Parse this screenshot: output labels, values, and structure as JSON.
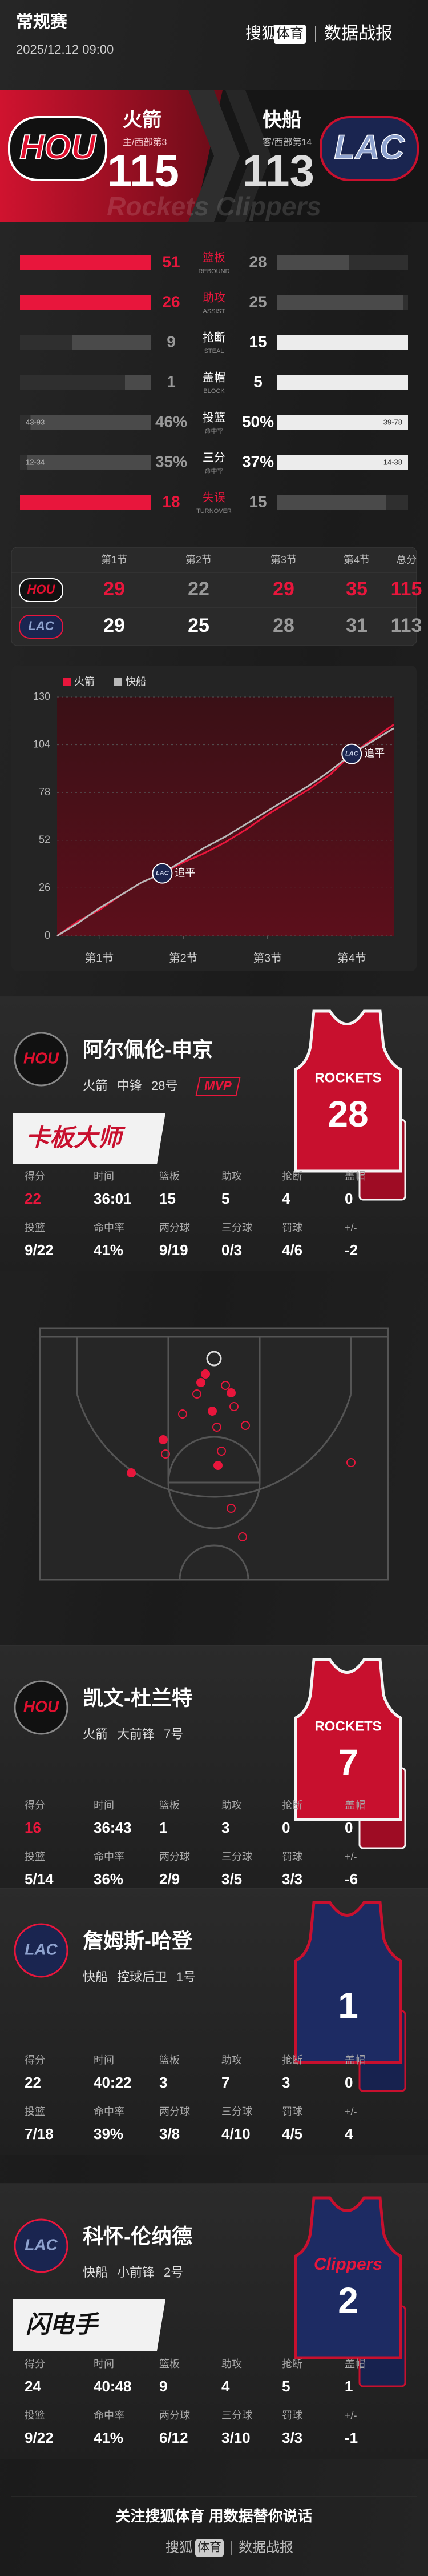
{
  "header": {
    "title": "常规赛",
    "date": "2025/12.12 09:00",
    "brand": "搜狐",
    "brand_tag": "体育",
    "report": "数据战报"
  },
  "teams": {
    "home": {
      "logo": "HOU",
      "name": "火箭",
      "rank": "主/西部第3",
      "score": 115
    },
    "away": {
      "logo": "LAC",
      "name": "快船",
      "rank": "客/西部第14",
      "score": 113
    },
    "watermark": "Rockets Clippers"
  },
  "comparison": [
    {
      "label": "篮板",
      "sub": "REBOUND",
      "home": 51,
      "away": 28
    },
    {
      "label": "助攻",
      "sub": "ASSIST",
      "home": 26,
      "away": 25
    },
    {
      "label": "抢断",
      "sub": "STEAL",
      "home": 9,
      "away": 15
    },
    {
      "label": "盖帽",
      "sub": "BLOCK",
      "home": 1,
      "away": 5
    },
    {
      "label": "投篮",
      "sub": "命中率",
      "home": 46,
      "away": 50,
      "home_label": "46%",
      "away_label": "50%",
      "home_detail": "43-93",
      "away_detail": "39-78"
    },
    {
      "label": "三分",
      "sub": "命中率",
      "home": 35,
      "away": 37,
      "home_label": "35%",
      "away_label": "37%",
      "home_detail": "12-34",
      "away_detail": "14-38"
    },
    {
      "label": "失误",
      "sub": "TURNOVER",
      "home": 18,
      "away": 15
    }
  ],
  "quarters": {
    "headers": [
      "第1节",
      "第2节",
      "第3节",
      "第4节",
      "总分"
    ],
    "rows": [
      {
        "logo": "HOU",
        "scores": [
          29,
          22,
          29,
          35,
          115
        ]
      },
      {
        "logo": "LAC",
        "scores": [
          29,
          25,
          28,
          31,
          113
        ]
      }
    ]
  },
  "score_chart": {
    "type": "line",
    "x": [
      0,
      3,
      6,
      9,
      12,
      15,
      18,
      21,
      24,
      27,
      30,
      33,
      36,
      39,
      42,
      45,
      48
    ],
    "series": [
      {
        "name": "火箭",
        "color": "#e8163c",
        "values": [
          0,
          8,
          14,
          22,
          29,
          34,
          40,
          45,
          51,
          58,
          66,
          73,
          80,
          88,
          99,
          107,
          115
        ]
      },
      {
        "name": "快船",
        "color": "#b8b8b8",
        "values": [
          0,
          7,
          15,
          22,
          29,
          34,
          41,
          48,
          54,
          61,
          68,
          75,
          82,
          90,
          99,
          106,
          113
        ]
      }
    ],
    "xlim": [
      0,
      48
    ],
    "xticks": [
      {
        "value": 6,
        "label": "第1节"
      },
      {
        "value": 18,
        "label": "第2节"
      },
      {
        "value": 30,
        "label": "第3节"
      },
      {
        "value": 42,
        "label": "第4节"
      }
    ],
    "ylim": [
      0,
      130
    ],
    "yticks": [
      0,
      26,
      52,
      78,
      104,
      130
    ],
    "annotations": [
      {
        "text": "追平",
        "logo": "LAC",
        "x": 15,
        "y": 34
      },
      {
        "text": "追平",
        "logo": "LAC",
        "x": 42,
        "y": 99
      }
    ]
  },
  "players": [
    {
      "logo": "HOU",
      "name": "阿尔佩伦-申京",
      "team": "火箭",
      "position": "中锋",
      "number": "28号",
      "badge": "MVP",
      "tag": "卡板大师",
      "jersey": {
        "text": "ROCKETS",
        "number": "28"
      },
      "stats": [
        [
          {
            "label": "得分",
            "value": "22"
          },
          {
            "label": "时间",
            "value": "36:01"
          },
          {
            "label": "篮板",
            "value": "15"
          },
          {
            "label": "助攻",
            "value": "5"
          },
          {
            "label": "抢断",
            "value": "4"
          },
          {
            "label": "盖帽",
            "value": "0"
          }
        ],
        [
          {
            "label": "投篮",
            "value": "9/22"
          },
          {
            "label": "命中率",
            "value": "41%"
          },
          {
            "label": "两分球",
            "value": "9/19"
          },
          {
            "label": "三分球",
            "value": "0/3"
          },
          {
            "label": "罚球",
            "value": "4/6"
          },
          {
            "label": "+/-",
            "value": "-2"
          }
        ]
      ]
    },
    {
      "logo": "HOU",
      "name": "凯文-杜兰特",
      "team": "火箭",
      "position": "大前锋",
      "number": "7号",
      "jersey": {
        "text": "ROCKETS",
        "number": "7"
      },
      "stats": [
        [
          {
            "label": "得分",
            "value": "16"
          },
          {
            "label": "时间",
            "value": "36:43"
          },
          {
            "label": "篮板",
            "value": "1"
          },
          {
            "label": "助攻",
            "value": "3"
          },
          {
            "label": "抢断",
            "value": "0"
          },
          {
            "label": "盖帽",
            "value": "0"
          }
        ],
        [
          {
            "label": "投篮",
            "value": "5/14"
          },
          {
            "label": "命中率",
            "value": "36%"
          },
          {
            "label": "两分球",
            "value": "2/9"
          },
          {
            "label": "三分球",
            "value": "3/5"
          },
          {
            "label": "罚球",
            "value": "3/3"
          },
          {
            "label": "+/-",
            "value": "-6"
          }
        ]
      ]
    },
    {
      "logo": "LAC",
      "name": "詹姆斯-哈登",
      "team": "快船",
      "position": "控球后卫",
      "number": "1号",
      "jersey": {
        "number": "1"
      },
      "stats": [
        [
          {
            "label": "得分",
            "value": "22"
          },
          {
            "label": "时间",
            "value": "40:22"
          },
          {
            "label": "篮板",
            "value": "3"
          },
          {
            "label": "助攻",
            "value": "7"
          },
          {
            "label": "抢断",
            "value": "3"
          },
          {
            "label": "盖帽",
            "value": "0"
          }
        ],
        [
          {
            "label": "投篮",
            "value": "7/18"
          },
          {
            "label": "命中率",
            "value": "39%"
          },
          {
            "label": "两分球",
            "value": "3/8"
          },
          {
            "label": "三分球",
            "value": "4/10"
          },
          {
            "label": "罚球",
            "value": "4/5"
          },
          {
            "label": "+/-",
            "value": "4"
          }
        ]
      ]
    },
    {
      "logo": "LAC",
      "name": "科怀-伦纳德",
      "team": "快船",
      "position": "小前锋",
      "number": "2号",
      "tag": "闪电手",
      "jersey": {
        "text": "Clippers",
        "number": "2"
      },
      "stats": [
        [
          {
            "label": "得分",
            "value": "24"
          },
          {
            "label": "时间",
            "value": "40:48"
          },
          {
            "label": "篮板",
            "value": "9"
          },
          {
            "label": "助攻",
            "value": "4"
          },
          {
            "label": "抢断",
            "value": "5"
          },
          {
            "label": "盖帽",
            "value": "1"
          }
        ],
        [
          {
            "label": "投篮",
            "value": "9/22"
          },
          {
            "label": "命中率",
            "value": "41%"
          },
          {
            "label": "两分球",
            "value": "6/12"
          },
          {
            "label": "三分球",
            "value": "3/10"
          },
          {
            "label": "罚球",
            "value": "3/3"
          },
          {
            "label": "+/-",
            "value": "-1"
          }
        ]
      ]
    }
  ],
  "footer": {
    "slogan": "关注搜狐体育 用数据替你说话",
    "brand": "搜狐",
    "brand_tag": "体育",
    "report": "数据战报"
  }
}
